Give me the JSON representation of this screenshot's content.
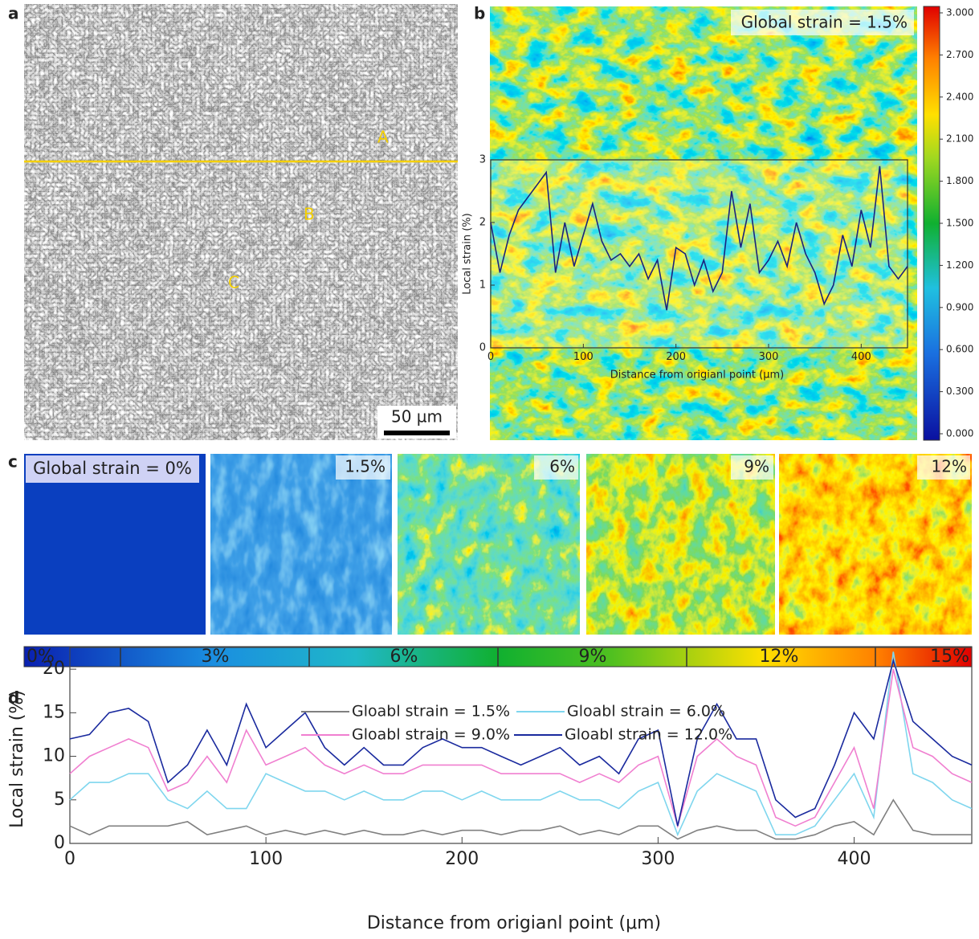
{
  "panel_labels": [
    "a",
    "b",
    "c",
    "d"
  ],
  "micrograph": {
    "labels": [
      "A",
      "B",
      "C"
    ],
    "scale_bar": "50 µm"
  },
  "maps": {
    "labels": [
      "Global strain = 0%",
      "1.5%",
      "6%",
      "9%",
      "12%"
    ],
    "colorbar_labels": [
      "0%",
      "3%",
      "6%",
      "9%",
      "12%",
      "15%"
    ]
  },
  "chart_data": [
    {
      "type": "line",
      "annotation": "Global strain = 1.5%",
      "x_label": "Distance from origianl point (μm)",
      "y_label": "Local strain (%)",
      "xlim": [
        0,
        450
      ],
      "xticks": [
        0,
        100,
        200,
        300,
        400
      ],
      "ylim": [
        0,
        3
      ],
      "yticks": [
        0,
        1,
        2,
        3
      ],
      "x": [
        0,
        10,
        20,
        30,
        40,
        50,
        60,
        70,
        80,
        90,
        100,
        110,
        120,
        130,
        140,
        150,
        160,
        170,
        180,
        190,
        200,
        210,
        220,
        230,
        240,
        250,
        260,
        270,
        280,
        290,
        300,
        310,
        320,
        330,
        340,
        350,
        360,
        370,
        380,
        390,
        400,
        410,
        420,
        430,
        440,
        450
      ],
      "color": "#1a237e",
      "values": [
        2,
        1.2,
        1.8,
        2.2,
        2.4,
        2.6,
        2.8,
        1.2,
        2,
        1.3,
        1.8,
        2.3,
        1.7,
        1.4,
        1.5,
        1.3,
        1.5,
        1.1,
        1.4,
        0.6,
        1.6,
        1.5,
        1.0,
        1.4,
        0.9,
        1.2,
        2.5,
        1.6,
        2.3,
        1.2,
        1.4,
        1.7,
        1.3,
        2.0,
        1.5,
        1.2,
        0.7,
        1.0,
        1.8,
        1.3,
        2.2,
        1.6,
        2.9,
        1.3,
        1.1,
        1.3
      ],
      "colorbar": {
        "lim": [
          0,
          3
        ],
        "ticks": [
          {
            "value": 0,
            "label": "0.000"
          },
          {
            "value": 0.3,
            "label": "0.300"
          },
          {
            "value": 0.6,
            "label": "0.600"
          },
          {
            "value": 0.9,
            "label": "0.900"
          },
          {
            "value": 1.2,
            "label": "1.200"
          },
          {
            "value": 1.5,
            "label": "1.500"
          },
          {
            "value": 1.8,
            "label": "1.800"
          },
          {
            "value": 2.1,
            "label": "2.100"
          },
          {
            "value": 2.4,
            "label": "2.400"
          },
          {
            "value": 2.7,
            "label": "2.700"
          },
          {
            "value": 3,
            "label": "3.000"
          }
        ]
      }
    },
    {
      "type": "line",
      "x_label": "Distance from origianl point (μm)",
      "y_label": "Local strain (%)",
      "xlim": [
        0,
        460
      ],
      "xticks": [
        0,
        100,
        200,
        300,
        400
      ],
      "ylim": [
        0,
        22.5
      ],
      "yticks": [
        0,
        5,
        10,
        15,
        20
      ],
      "x": [
        0,
        10,
        20,
        30,
        40,
        50,
        60,
        70,
        80,
        90,
        100,
        110,
        120,
        130,
        140,
        150,
        160,
        170,
        180,
        190,
        200,
        210,
        220,
        230,
        240,
        250,
        260,
        270,
        280,
        290,
        300,
        310,
        320,
        330,
        340,
        350,
        360,
        370,
        380,
        390,
        400,
        410,
        420,
        430,
        440,
        450,
        460
      ],
      "series": [
        {
          "name": "Gloabl strain = 1.5%",
          "color": "#808080",
          "values": [
            2,
            1,
            2,
            2,
            2,
            2,
            2.5,
            1,
            1.5,
            2,
            1,
            1.5,
            1,
            1.5,
            1,
            1.5,
            1,
            1,
            1.5,
            1,
            1.5,
            1.5,
            1,
            1.5,
            1.5,
            2,
            1,
            1.5,
            1,
            2,
            2,
            0.5,
            1.5,
            2,
            1.5,
            1.5,
            0.5,
            0.5,
            1,
            2,
            2.5,
            1,
            5,
            1.5,
            1,
            1,
            1
          ]
        },
        {
          "name": "Gloabl strain = 6.0%",
          "color": "#7fd6ee",
          "values": [
            5,
            7,
            7,
            8,
            8,
            5,
            4,
            6,
            4,
            4,
            8,
            7,
            6,
            6,
            5,
            6,
            5,
            5,
            6,
            6,
            5,
            6,
            5,
            5,
            5,
            6,
            5,
            5,
            4,
            6,
            7,
            1,
            6,
            8,
            7,
            6,
            1,
            1,
            2,
            5,
            8,
            3,
            22,
            8,
            7,
            5,
            4
          ]
        },
        {
          "name": "Gloabl strain = 9.0%",
          "color": "#f07fd0",
          "values": [
            8,
            10,
            11,
            12,
            11,
            6,
            7,
            10,
            7,
            13,
            9,
            10,
            11,
            9,
            8,
            9,
            8,
            8,
            9,
            9,
            9,
            9,
            8,
            8,
            8,
            8,
            7,
            8,
            7,
            9,
            10,
            2,
            10,
            12,
            10,
            9,
            3,
            2,
            3,
            7,
            11,
            4,
            20,
            11,
            10,
            8,
            7
          ]
        },
        {
          "name": "Gloabl strain = 12.0%",
          "color": "#1a2a9e",
          "values": [
            12,
            12.5,
            15,
            15.5,
            14,
            7,
            9,
            13,
            9,
            16,
            11,
            13,
            15,
            11,
            9,
            11,
            9,
            9,
            11,
            12,
            11,
            11,
            10,
            9,
            10,
            11,
            9,
            10,
            8,
            12,
            13,
            2,
            12,
            16,
            12,
            12,
            5,
            3,
            4,
            9,
            15,
            12,
            21,
            14,
            12,
            10,
            9
          ]
        }
      ]
    }
  ]
}
